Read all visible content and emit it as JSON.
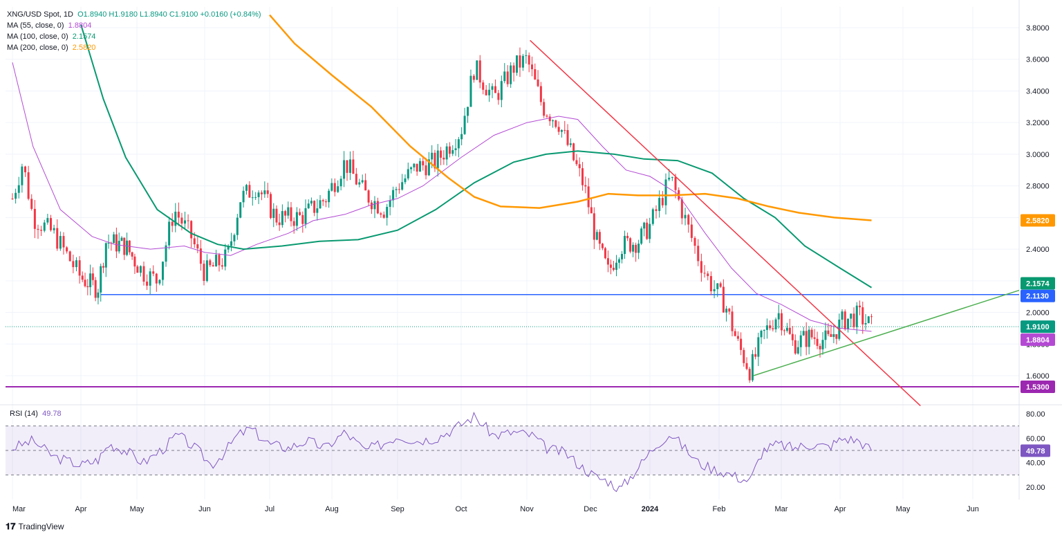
{
  "header": {
    "symbol": "XNG/USD Spot, 1D",
    "ohlc": "O1.8940  H1.9180  L1.8940  C1.9100  +0.0160 (+0.84%)",
    "ma55_label": "MA (55, close, 0)",
    "ma55_value": "1.8804",
    "ma100_label": "MA (100, close, 0)",
    "ma100_value": "2.1574",
    "ma200_label": "MA (200, close, 0)",
    "ma200_value": "2.5820"
  },
  "rsi": {
    "label": "RSI (14)",
    "value": "49.78"
  },
  "footer": {
    "brand": "TradingView"
  },
  "colors": {
    "up": "#089981",
    "down": "#f23645",
    "ma55": "#b44ad4",
    "ma100": "#089970",
    "ma200": "#ff9800",
    "trend_red": "#f23645",
    "trend_green": "#4caf50",
    "support_blue": "#2962ff",
    "support_purple": "#9c27b0",
    "rsi": "#7e57c2"
  },
  "chart_data": [
    {
      "type": "line",
      "title": "XNG/USD Spot, 1D",
      "x_tick_labels": [
        "Mar",
        "Apr",
        "May",
        "Jun",
        "Jul",
        "Aug",
        "Sep",
        "Oct",
        "Nov",
        "Dec",
        "2024",
        "Feb",
        "Mar",
        "Apr",
        "May",
        "Jun"
      ],
      "y_tick_labels": [
        "1.6000",
        "1.8000",
        "2.0000",
        "2.2000",
        "2.4000",
        "2.6000",
        "2.8000",
        "3.0000",
        "3.2000",
        "3.4000",
        "3.6000",
        "3.8000"
      ],
      "ylim": [
        1.44,
        3.88
      ],
      "price_close_approx": [
        {
          "x": "Mar",
          "y": 2.75
        },
        {
          "x": "Mar",
          "y": 2.85
        },
        {
          "x": "Mar",
          "y": 2.6
        },
        {
          "x": "Apr",
          "y": 2.2
        },
        {
          "x": "Apr",
          "y": 2.15
        },
        {
          "x": "Apr",
          "y": 2.45
        },
        {
          "x": "May",
          "y": 2.3
        },
        {
          "x": "May",
          "y": 2.2
        },
        {
          "x": "May",
          "y": 2.6
        },
        {
          "x": "Jun",
          "y": 2.3
        },
        {
          "x": "Jun",
          "y": 2.25
        },
        {
          "x": "Jun",
          "y": 2.6
        },
        {
          "x": "Jul",
          "y": 2.7
        },
        {
          "x": "Jul",
          "y": 2.6
        },
        {
          "x": "Aug",
          "y": 2.6
        },
        {
          "x": "Aug",
          "y": 2.9
        },
        {
          "x": "Aug",
          "y": 2.65
        },
        {
          "x": "Sep",
          "y": 2.75
        },
        {
          "x": "Sep",
          "y": 2.95
        },
        {
          "x": "Oct",
          "y": 3.05
        },
        {
          "x": "Oct",
          "y": 3.4
        },
        {
          "x": "Oct",
          "y": 3.45
        },
        {
          "x": "Nov",
          "y": 3.55
        },
        {
          "x": "Nov",
          "y": 3.2
        },
        {
          "x": "Nov",
          "y": 3.0
        },
        {
          "x": "Dec",
          "y": 2.7
        },
        {
          "x": "Dec",
          "y": 2.3
        },
        {
          "x": "Dec",
          "y": 2.45
        },
        {
          "x": "2024",
          "y": 2.6
        },
        {
          "x": "2024",
          "y": 2.85
        },
        {
          "x": "2024",
          "y": 2.45
        },
        {
          "x": "Feb",
          "y": 2.1
        },
        {
          "x": "Feb",
          "y": 1.75
        },
        {
          "x": "Feb",
          "y": 1.62
        },
        {
          "x": "Mar",
          "y": 1.95
        },
        {
          "x": "Mar",
          "y": 1.8
        },
        {
          "x": "Apr",
          "y": 1.85
        },
        {
          "x": "Apr",
          "y": 2.0
        },
        {
          "x": "Apr",
          "y": 1.91
        }
      ],
      "series": [
        {
          "name": "MA (55, close, 0)",
          "last": 1.8804
        },
        {
          "name": "MA (100, close, 0)",
          "last": 2.1574
        },
        {
          "name": "MA (200, close, 0)",
          "last": 2.582
        }
      ],
      "horizontal_levels": [
        2.113,
        1.53
      ],
      "price_labels": [
        "2.5820",
        "2.1574",
        "2.1130",
        "1.9100",
        "1.8804",
        "1.5300"
      ],
      "grid": true
    },
    {
      "type": "line",
      "title": "RSI (14)",
      "y_tick_labels": [
        "20.00",
        "40.00",
        "60.00",
        "80.00"
      ],
      "ylim": [
        13,
        85
      ],
      "reference_levels": [
        30,
        50,
        70
      ],
      "last": 49.78,
      "values_approx": [
        {
          "x": "Mar",
          "y": 55
        },
        {
          "x": "Apr",
          "y": 40
        },
        {
          "x": "May",
          "y": 55
        },
        {
          "x": "Jun",
          "y": 42
        },
        {
          "x": "Jul",
          "y": 65
        },
        {
          "x": "Aug",
          "y": 60
        },
        {
          "x": "Sep",
          "y": 62
        },
        {
          "x": "Oct",
          "y": 78
        },
        {
          "x": "Nov",
          "y": 55
        },
        {
          "x": "Dec",
          "y": 18
        },
        {
          "x": "2024",
          "y": 65
        },
        {
          "x": "Feb",
          "y": 25
        },
        {
          "x": "Mar",
          "y": 55
        },
        {
          "x": "Apr",
          "y": 60
        },
        {
          "x": "Apr",
          "y": 49.78
        }
      ]
    }
  ]
}
